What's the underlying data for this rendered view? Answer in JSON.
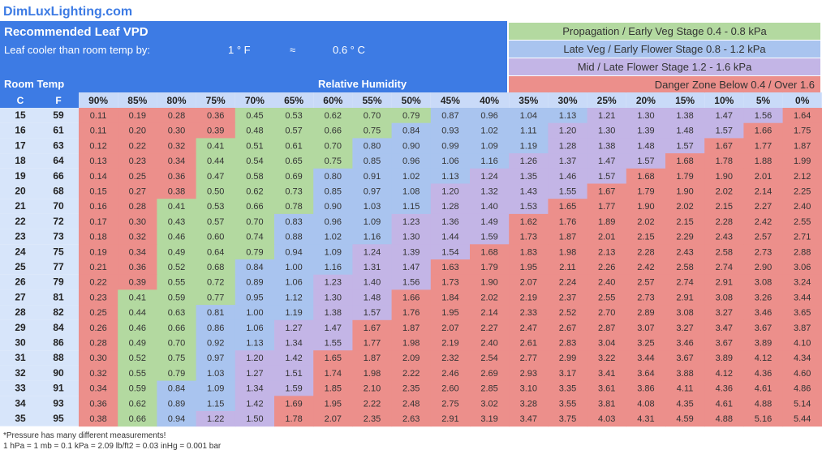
{
  "brand": "DimLuxLighting.com",
  "title": "Recommended Leaf VPD",
  "leaf_cooler_label": "Leaf cooler than room temp by:",
  "leaf_cooler_f": "1 ° F",
  "approx_symbol": "≈",
  "leaf_cooler_c": "0.6 ° C",
  "room_temp_label": "Room Temp",
  "rh_label": "Relative Humidity",
  "col_c": "C",
  "col_f": "F",
  "legend": [
    {
      "label": "Propagation / Early Veg Stage 0.4 - 0.8 kPa",
      "color": "#b3d9a0"
    },
    {
      "label": "Late Veg / Early Flower Stage 0.8 - 1.2 kPa",
      "color": "#a9c4ef"
    },
    {
      "label": "Mid / Late Flower Stage 1.2 - 1.6 kPa",
      "color": "#c3b5e6"
    },
    {
      "label": "Danger Zone  Below 0.4 / Over 1.6",
      "color": "#ec8f8b"
    }
  ],
  "footnote_1": "*Pressure has many different measurements!",
  "footnote_2": "1 hPa = 1 mb = 0.1 kPa = 2.09 lb/ft2 = 0.03 inHg = 0.001 bar",
  "colors": {
    "header_blue": "#3d7be4",
    "propagation": "#b3d9a0",
    "late_veg": "#a9c4ef",
    "flower": "#c3b5e6",
    "danger": "#ec8f8b",
    "rh_header_bg": "#c9daf8",
    "temp_col_bg": "#d7e5fa"
  },
  "chart_data": {
    "type": "heatmap",
    "title": "Recommended Leaf VPD",
    "xlabel": "Relative Humidity",
    "ylabel": "Room Temp",
    "x": [
      "90%",
      "85%",
      "80%",
      "75%",
      "70%",
      "65%",
      "60%",
      "55%",
      "50%",
      "45%",
      "40%",
      "35%",
      "30%",
      "25%",
      "20%",
      "15%",
      "10%",
      "5%",
      "0%"
    ],
    "rows_c": [
      "15",
      "16",
      "17",
      "18",
      "19",
      "20",
      "21",
      "22",
      "23",
      "24",
      "25",
      "26",
      "27",
      "28",
      "29",
      "30",
      "31",
      "32",
      "33",
      "34",
      "35"
    ],
    "rows_f": [
      "59",
      "61",
      "63",
      "64",
      "66",
      "68",
      "70",
      "72",
      "73",
      "75",
      "77",
      "79",
      "81",
      "82",
      "84",
      "86",
      "88",
      "90",
      "91",
      "93",
      "95"
    ],
    "values": [
      [
        0.11,
        0.19,
        0.28,
        0.36,
        0.45,
        0.53,
        0.62,
        0.7,
        0.79,
        0.87,
        0.96,
        1.04,
        1.13,
        1.21,
        1.3,
        1.38,
        1.47,
        1.56,
        1.64
      ],
      [
        0.11,
        0.2,
        0.3,
        0.39,
        0.48,
        0.57,
        0.66,
        0.75,
        0.84,
        0.93,
        1.02,
        1.11,
        1.2,
        1.3,
        1.39,
        1.48,
        1.57,
        1.66,
        1.75
      ],
      [
        0.12,
        0.22,
        0.32,
        0.41,
        0.51,
        0.61,
        0.7,
        0.8,
        0.9,
        0.99,
        1.09,
        1.19,
        1.28,
        1.38,
        1.48,
        1.57,
        1.67,
        1.77,
        1.87
      ],
      [
        0.13,
        0.23,
        0.34,
        0.44,
        0.54,
        0.65,
        0.75,
        0.85,
        0.96,
        1.06,
        1.16,
        1.26,
        1.37,
        1.47,
        1.57,
        1.68,
        1.78,
        1.88,
        1.99
      ],
      [
        0.14,
        0.25,
        0.36,
        0.47,
        0.58,
        0.69,
        0.8,
        0.91,
        1.02,
        1.13,
        1.24,
        1.35,
        1.46,
        1.57,
        1.68,
        1.79,
        1.9,
        2.01,
        2.12
      ],
      [
        0.15,
        0.27,
        0.38,
        0.5,
        0.62,
        0.73,
        0.85,
        0.97,
        1.08,
        1.2,
        1.32,
        1.43,
        1.55,
        1.67,
        1.79,
        1.9,
        2.02,
        2.14,
        2.25
      ],
      [
        0.16,
        0.28,
        0.41,
        0.53,
        0.66,
        0.78,
        0.9,
        1.03,
        1.15,
        1.28,
        1.4,
        1.53,
        1.65,
        1.77,
        1.9,
        2.02,
        2.15,
        2.27,
        2.4
      ],
      [
        0.17,
        0.3,
        0.43,
        0.57,
        0.7,
        0.83,
        0.96,
        1.09,
        1.23,
        1.36,
        1.49,
        1.62,
        1.76,
        1.89,
        2.02,
        2.15,
        2.28,
        2.42,
        2.55
      ],
      [
        0.18,
        0.32,
        0.46,
        0.6,
        0.74,
        0.88,
        1.02,
        1.16,
        1.3,
        1.44,
        1.59,
        1.73,
        1.87,
        2.01,
        2.15,
        2.29,
        2.43,
        2.57,
        2.71
      ],
      [
        0.19,
        0.34,
        0.49,
        0.64,
        0.79,
        0.94,
        1.09,
        1.24,
        1.39,
        1.54,
        1.68,
        1.83,
        1.98,
        2.13,
        2.28,
        2.43,
        2.58,
        2.73,
        2.88
      ],
      [
        0.21,
        0.36,
        0.52,
        0.68,
        0.84,
        1.0,
        1.16,
        1.31,
        1.47,
        1.63,
        1.79,
        1.95,
        2.11,
        2.26,
        2.42,
        2.58,
        2.74,
        2.9,
        3.06
      ],
      [
        0.22,
        0.39,
        0.55,
        0.72,
        0.89,
        1.06,
        1.23,
        1.4,
        1.56,
        1.73,
        1.9,
        2.07,
        2.24,
        2.4,
        2.57,
        2.74,
        2.91,
        3.08,
        3.24
      ],
      [
        0.23,
        0.41,
        0.59,
        0.77,
        0.95,
        1.12,
        1.3,
        1.48,
        1.66,
        1.84,
        2.02,
        2.19,
        2.37,
        2.55,
        2.73,
        2.91,
        3.08,
        3.26,
        3.44
      ],
      [
        0.25,
        0.44,
        0.63,
        0.81,
        1.0,
        1.19,
        1.38,
        1.57,
        1.76,
        1.95,
        2.14,
        2.33,
        2.52,
        2.7,
        2.89,
        3.08,
        3.27,
        3.46,
        3.65
      ],
      [
        0.26,
        0.46,
        0.66,
        0.86,
        1.06,
        1.27,
        1.47,
        1.67,
        1.87,
        2.07,
        2.27,
        2.47,
        2.67,
        2.87,
        3.07,
        3.27,
        3.47,
        3.67,
        3.87
      ],
      [
        0.28,
        0.49,
        0.7,
        0.92,
        1.13,
        1.34,
        1.55,
        1.77,
        1.98,
        2.19,
        2.4,
        2.61,
        2.83,
        3.04,
        3.25,
        3.46,
        3.67,
        3.89,
        4.1
      ],
      [
        0.3,
        0.52,
        0.75,
        0.97,
        1.2,
        1.42,
        1.65,
        1.87,
        2.09,
        2.32,
        2.54,
        2.77,
        2.99,
        3.22,
        3.44,
        3.67,
        3.89,
        4.12,
        4.34
      ],
      [
        0.32,
        0.55,
        0.79,
        1.03,
        1.27,
        1.51,
        1.74,
        1.98,
        2.22,
        2.46,
        2.69,
        2.93,
        3.17,
        3.41,
        3.64,
        3.88,
        4.12,
        4.36,
        4.6
      ],
      [
        0.34,
        0.59,
        0.84,
        1.09,
        1.34,
        1.59,
        1.85,
        2.1,
        2.35,
        2.6,
        2.85,
        3.1,
        3.35,
        3.61,
        3.86,
        4.11,
        4.36,
        4.61,
        4.86
      ],
      [
        0.36,
        0.62,
        0.89,
        1.15,
        1.42,
        1.69,
        1.95,
        2.22,
        2.48,
        2.75,
        3.02,
        3.28,
        3.55,
        3.81,
        4.08,
        4.35,
        4.61,
        4.88,
        5.14
      ],
      [
        0.38,
        0.66,
        0.94,
        1.22,
        1.5,
        1.78,
        2.07,
        2.35,
        2.63,
        2.91,
        3.19,
        3.47,
        3.75,
        4.03,
        4.31,
        4.59,
        4.88,
        5.16,
        5.44
      ]
    ]
  }
}
